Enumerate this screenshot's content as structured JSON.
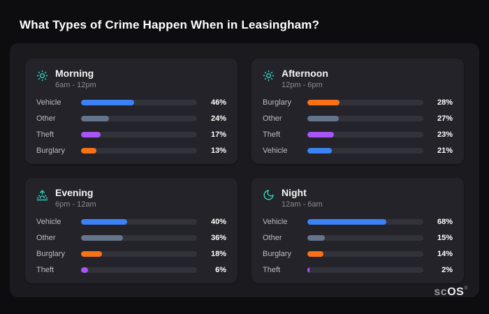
{
  "title": "What Types of Crime Happen When in Leasingham?",
  "logo": {
    "prefix": "sc",
    "suffix": "OS",
    "registered": "®"
  },
  "colors": {
    "background": "#0d0d10",
    "panel": "#1a1a1f",
    "card": "#232329",
    "track": "#32333a",
    "icon_teal": "#2dd4bf",
    "vehicle": "#3b82f6",
    "other": "#64748b",
    "theft": "#a855f7",
    "burglary": "#f97316"
  },
  "chart_data": [
    {
      "type": "bar",
      "title": "Morning",
      "subtitle": "6am - 12pm",
      "icon": "sun-icon",
      "xlim": [
        0,
        100
      ],
      "rows": [
        {
          "label": "Vehicle",
          "value": 46,
          "color": "#3b82f6"
        },
        {
          "label": "Other",
          "value": 24,
          "color": "#64748b"
        },
        {
          "label": "Theft",
          "value": 17,
          "color": "#a855f7"
        },
        {
          "label": "Burglary",
          "value": 13,
          "color": "#f97316"
        }
      ]
    },
    {
      "type": "bar",
      "title": "Afternoon",
      "subtitle": "12pm - 6pm",
      "icon": "sun-icon",
      "xlim": [
        0,
        100
      ],
      "rows": [
        {
          "label": "Burglary",
          "value": 28,
          "color": "#f97316"
        },
        {
          "label": "Other",
          "value": 27,
          "color": "#64748b"
        },
        {
          "label": "Theft",
          "value": 23,
          "color": "#a855f7"
        },
        {
          "label": "Vehicle",
          "value": 21,
          "color": "#3b82f6"
        }
      ]
    },
    {
      "type": "bar",
      "title": "Evening",
      "subtitle": "6pm - 12am",
      "icon": "sunset-icon",
      "xlim": [
        0,
        100
      ],
      "rows": [
        {
          "label": "Vehicle",
          "value": 40,
          "color": "#3b82f6"
        },
        {
          "label": "Other",
          "value": 36,
          "color": "#64748b"
        },
        {
          "label": "Burglary",
          "value": 18,
          "color": "#f97316"
        },
        {
          "label": "Theft",
          "value": 6,
          "color": "#a855f7"
        }
      ]
    },
    {
      "type": "bar",
      "title": "Night",
      "subtitle": "12am - 6am",
      "icon": "moon-icon",
      "xlim": [
        0,
        100
      ],
      "rows": [
        {
          "label": "Vehicle",
          "value": 68,
          "color": "#3b82f6"
        },
        {
          "label": "Other",
          "value": 15,
          "color": "#64748b"
        },
        {
          "label": "Burglary",
          "value": 14,
          "color": "#f97316"
        },
        {
          "label": "Theft",
          "value": 2,
          "color": "#a855f7"
        }
      ]
    }
  ]
}
